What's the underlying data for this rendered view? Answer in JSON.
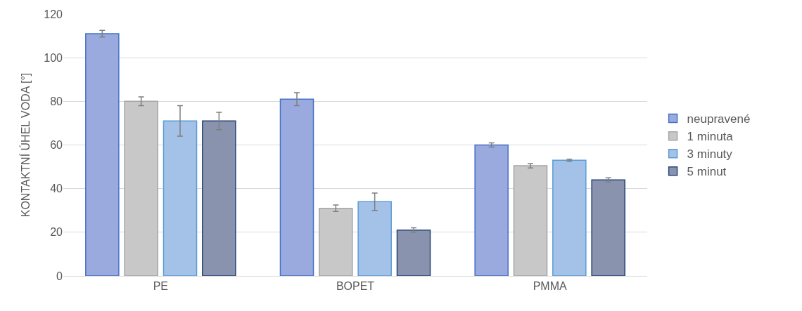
{
  "chart_data": {
    "type": "bar",
    "ylabel": "KONTAKTNÍ ÚHEL VODA [°]",
    "categories": [
      "PE",
      "BOPET",
      "PMMA"
    ],
    "series": [
      {
        "name": "neupravené",
        "color": "#9aaadf",
        "values": [
          111,
          81,
          60
        ],
        "errors": [
          1.5,
          3,
          1
        ]
      },
      {
        "name": "1 minuta",
        "color": "#c8c8c8",
        "values": [
          80,
          31,
          50.5
        ],
        "errors": [
          2,
          1.5,
          1
        ]
      },
      {
        "name": "3 minuty",
        "color": "#a4c2e8",
        "values": [
          71,
          34,
          53
        ],
        "errors": [
          7,
          4,
          0.5
        ]
      },
      {
        "name": "5 minut",
        "color": "#8a93ad",
        "values": [
          71,
          21,
          44
        ],
        "errors": [
          4,
          1,
          1
        ]
      }
    ],
    "ylim": [
      0,
      120
    ],
    "yticks": [
      0,
      20,
      40,
      60,
      80,
      100,
      120
    ],
    "grid": "y",
    "legend": "right"
  }
}
